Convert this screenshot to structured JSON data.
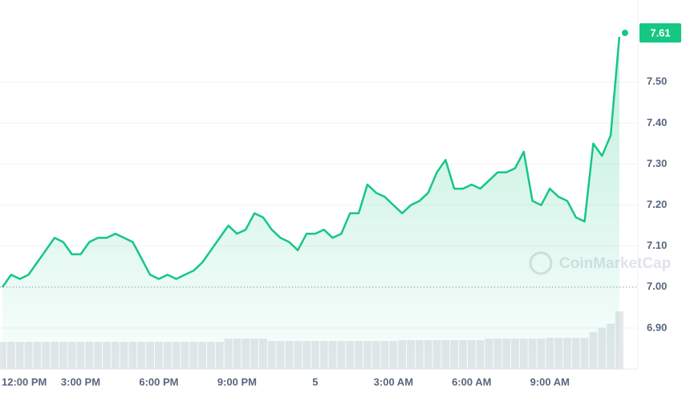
{
  "chart_data": {
    "type": "line",
    "categories": [
      "12:00 PM",
      null,
      null,
      null,
      null,
      null,
      null,
      null,
      null,
      "3:00 PM",
      null,
      null,
      null,
      null,
      null,
      null,
      null,
      null,
      "6:00 PM",
      null,
      null,
      null,
      null,
      null,
      null,
      null,
      null,
      "9:00 PM",
      null,
      null,
      null,
      null,
      null,
      null,
      null,
      null,
      "5",
      null,
      null,
      null,
      null,
      null,
      null,
      null,
      null,
      "3:00 AM",
      null,
      null,
      null,
      null,
      null,
      null,
      null,
      null,
      "6:00 AM",
      null,
      null,
      null,
      null,
      null,
      null,
      null,
      null,
      "9:00 AM",
      null,
      null,
      null,
      null,
      null,
      null,
      null,
      null
    ],
    "series": [
      {
        "color": "#16c784",
        "values": [
          7.0,
          7.03,
          7.02,
          7.03,
          7.06,
          7.09,
          7.12,
          7.11,
          7.08,
          7.08,
          7.11,
          7.12,
          7.12,
          7.13,
          7.12,
          7.11,
          7.07,
          7.03,
          7.02,
          7.03,
          7.02,
          7.03,
          7.04,
          7.06,
          7.09,
          7.12,
          7.15,
          7.13,
          7.14,
          7.18,
          7.17,
          7.14,
          7.12,
          7.11,
          7.09,
          7.13,
          7.13,
          7.14,
          7.12,
          7.13,
          7.18,
          7.18,
          7.25,
          7.23,
          7.22,
          7.2,
          7.18,
          7.2,
          7.21,
          7.23,
          7.28,
          7.31,
          7.24,
          7.24,
          7.25,
          7.24,
          7.26,
          7.28,
          7.28,
          7.29,
          7.33,
          7.21,
          7.2,
          7.24,
          7.22,
          7.21,
          7.17,
          7.16,
          7.35,
          7.32,
          7.37,
          7.61
        ]
      }
    ],
    "volume": [
      33,
      33,
      33,
      33,
      33,
      33,
      33,
      33,
      33,
      33,
      33,
      33,
      33,
      33,
      33,
      33,
      33,
      33,
      33,
      33,
      33,
      33,
      33,
      33,
      33,
      33,
      37,
      37,
      37,
      37,
      37,
      34,
      34,
      34,
      34,
      34,
      34,
      34,
      34,
      34,
      34,
      34,
      34,
      34,
      34,
      34,
      35,
      35,
      35,
      35,
      35,
      35,
      35,
      35,
      35,
      35,
      37,
      37,
      37,
      37,
      37,
      37,
      37,
      38,
      38,
      38,
      38,
      38,
      45,
      50,
      55,
      70
    ],
    "baseline": 7.0,
    "ylim": [
      6.8,
      7.7
    ],
    "yticks": [
      {
        "value": 6.9,
        "label": "6.90"
      },
      {
        "value": 7.0,
        "label": "7.00"
      },
      {
        "value": 7.1,
        "label": "7.10"
      },
      {
        "value": 7.2,
        "label": "7.20"
      },
      {
        "value": 7.3,
        "label": "7.30"
      },
      {
        "value": 7.4,
        "label": "7.40"
      },
      {
        "value": 7.5,
        "label": "7.50"
      }
    ],
    "grid": true,
    "watermark": "CoinMarketCap"
  }
}
